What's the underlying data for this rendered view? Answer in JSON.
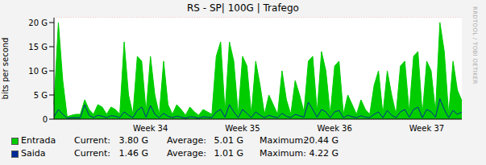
{
  "chart_data": {
    "type": "area",
    "title": "RS - SP| 100G | Trafego",
    "y_label": "bits per second",
    "side_text": "RRDTOOL / TOBI OETIKER",
    "categories": [
      null,
      null,
      null,
      null,
      null,
      null,
      null,
      null,
      null,
      null,
      null,
      null,
      null,
      null,
      null,
      null,
      null,
      null,
      null,
      null,
      null,
      null,
      "Week 34",
      null,
      null,
      null,
      null,
      null,
      null,
      null,
      null,
      null,
      null,
      null,
      null,
      null,
      null,
      null,
      null,
      null,
      null,
      null,
      null,
      "Week 35",
      null,
      null,
      null,
      null,
      null,
      null,
      null,
      null,
      null,
      null,
      null,
      null,
      null,
      null,
      null,
      null,
      null,
      null,
      null,
      null,
      "Week 36",
      null,
      null,
      null,
      null,
      null,
      null,
      null,
      null,
      null,
      null,
      null,
      null,
      null,
      null,
      null,
      null,
      null,
      null,
      null,
      null,
      "Week 37",
      null,
      null,
      null,
      null,
      null,
      null,
      null,
      null
    ],
    "ylim": [
      0,
      21
    ],
    "yticks": [
      0,
      {
        "value": 5,
        "label": "5 G"
      },
      {
        "value": 10,
        "label": "10 G"
      },
      {
        "value": 15,
        "label": "15 G"
      },
      {
        "value": 20,
        "label": "20 G"
      }
    ],
    "grid": true,
    "legend": "bottom",
    "stat_names": [
      "Current:",
      "Average:",
      "Maximum:"
    ],
    "series": [
      {
        "name": "Entrada",
        "type": "area",
        "color": "#00cc00",
        "stats": [
          "3.80 G",
          "5.01 G",
          "20.44 G"
        ],
        "values": [
          3,
          20,
          8,
          0.5,
          0.8,
          1,
          1,
          4,
          2,
          1,
          3,
          2.5,
          1,
          2.5,
          2,
          1,
          16,
          5,
          1,
          13,
          12,
          1.5,
          13,
          5,
          1,
          12,
          3,
          1,
          3,
          2,
          0.8,
          2.5,
          1.5,
          0.8,
          2,
          1.5,
          1,
          13,
          16,
          1.5,
          16,
          12,
          1,
          13,
          11,
          1,
          12,
          7,
          1,
          5,
          3,
          1,
          10,
          4,
          1,
          8,
          5,
          1.5,
          12,
          13,
          1.5,
          14,
          10,
          1,
          11,
          12,
          1,
          5,
          3,
          1,
          4,
          2,
          1,
          7,
          10,
          1,
          10,
          5,
          1,
          11,
          12,
          1.5,
          13,
          14,
          1,
          12,
          10,
          1.5,
          20,
          14,
          1,
          12,
          6,
          3.8
        ]
      },
      {
        "name": "Saida",
        "type": "line",
        "color": "#002a97",
        "stats": [
          "1.46 G",
          "1.01 G",
          "4.22 G"
        ],
        "values": [
          0.5,
          2,
          1,
          0.2,
          0.3,
          0.3,
          0.3,
          3,
          0.8,
          0.3,
          0.8,
          0.6,
          0.3,
          0.7,
          0.6,
          0.3,
          1.5,
          0.8,
          0.3,
          1.8,
          2.5,
          0.4,
          2.8,
          1,
          0.3,
          1.2,
          0.6,
          0.3,
          0.6,
          0.4,
          0.2,
          0.5,
          0.4,
          0.2,
          0.5,
          0.4,
          0.3,
          1.5,
          2,
          0.4,
          3,
          1.5,
          0.3,
          2,
          1.2,
          0.3,
          1.5,
          0.8,
          0.3,
          0.8,
          0.5,
          0.3,
          1.2,
          0.6,
          0.3,
          1,
          0.7,
          0.4,
          3.5,
          2,
          0.4,
          2,
          1.5,
          0.3,
          1.5,
          1.8,
          0.3,
          0.8,
          0.5,
          0.3,
          0.7,
          0.4,
          0.3,
          1,
          1.5,
          0.3,
          1.8,
          0.8,
          0.3,
          1.5,
          2,
          0.4,
          2,
          2.5,
          0.3,
          2,
          1.5,
          0.4,
          4.2,
          2,
          0.3,
          1.8,
          1,
          1.46
        ]
      }
    ]
  }
}
